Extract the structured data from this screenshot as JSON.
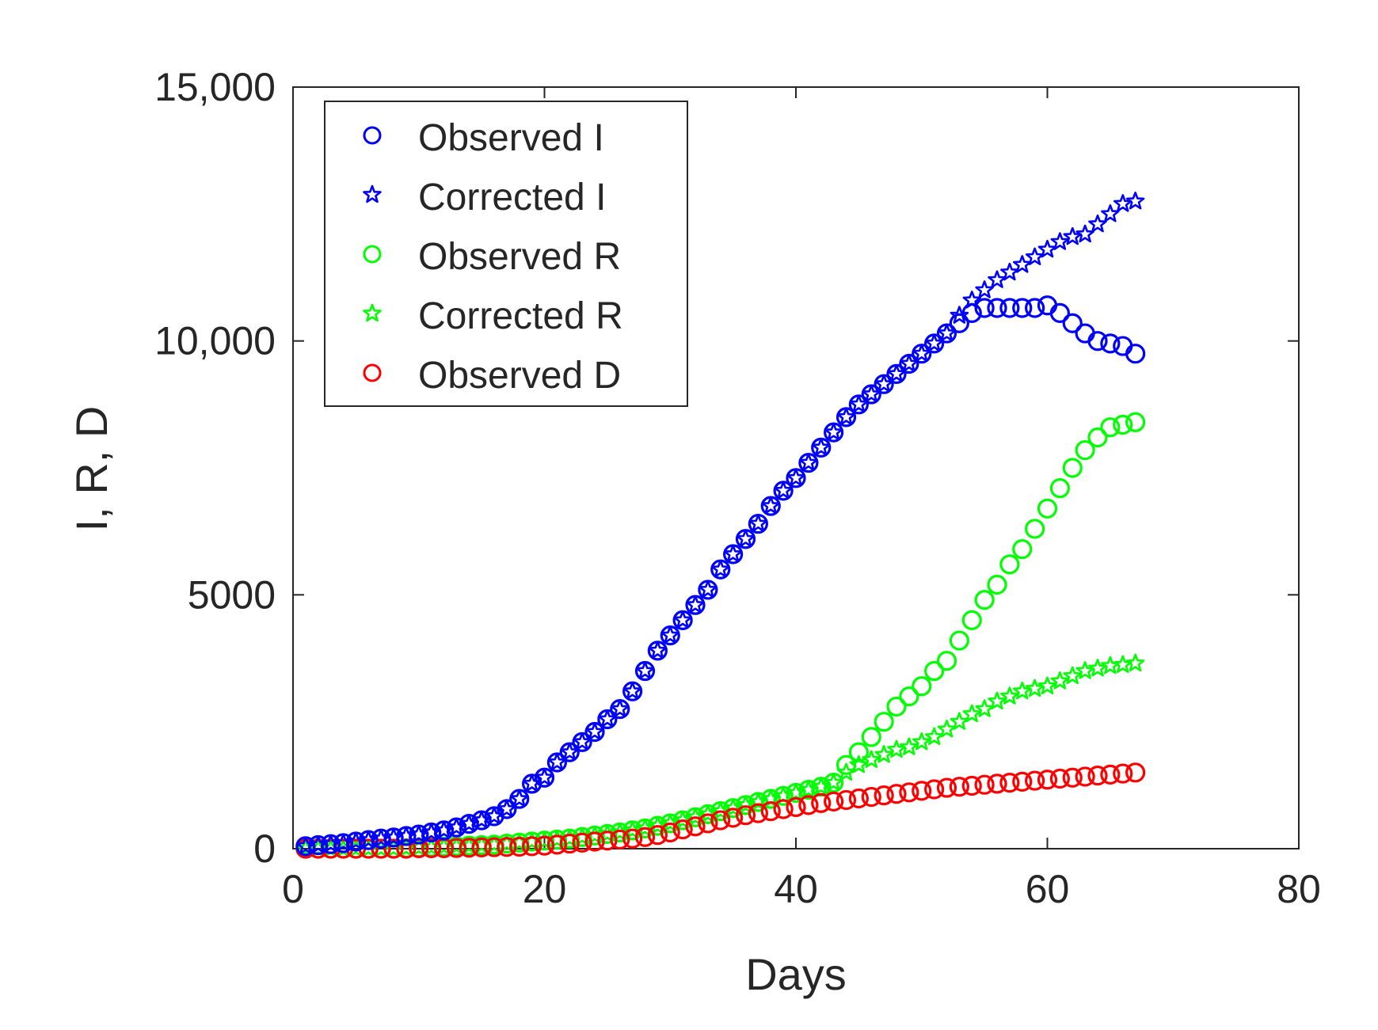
{
  "chart_data": {
    "type": "scatter",
    "title": "",
    "xlabel": "Days",
    "ylabel": "I, R, D",
    "xlim": [
      0,
      80
    ],
    "ylim": [
      0,
      15000
    ],
    "xticks": [
      0,
      20,
      40,
      60,
      80
    ],
    "yticks": [
      0,
      5000,
      10000,
      15000
    ],
    "xtick_labels": [
      "0",
      "20",
      "40",
      "60",
      "80"
    ],
    "ytick_labels": [
      "0",
      "5000",
      "10,000",
      "15,000"
    ],
    "legend_position": "top-left",
    "grid": false,
    "x": [
      1,
      2,
      3,
      4,
      5,
      6,
      7,
      8,
      9,
      10,
      11,
      12,
      13,
      14,
      15,
      16,
      17,
      18,
      19,
      20,
      21,
      22,
      23,
      24,
      25,
      26,
      27,
      28,
      29,
      30,
      31,
      32,
      33,
      34,
      35,
      36,
      37,
      38,
      39,
      40,
      41,
      42,
      43,
      44,
      45,
      46,
      47,
      48,
      49,
      50,
      51,
      52,
      53,
      54,
      55,
      56,
      57,
      58,
      59,
      60,
      61,
      62,
      63,
      64,
      65,
      66,
      67
    ],
    "series": [
      {
        "name": "Observed I",
        "marker": "circle",
        "color": "#0000ff",
        "values": [
          50,
          70,
          90,
          110,
          140,
          170,
          200,
          220,
          250,
          280,
          320,
          360,
          420,
          490,
          560,
          640,
          780,
          980,
          1280,
          1400,
          1700,
          1900,
          2100,
          2300,
          2550,
          2750,
          3100,
          3500,
          3900,
          4200,
          4500,
          4800,
          5100,
          5500,
          5800,
          6100,
          6400,
          6750,
          7050,
          7300,
          7600,
          7900,
          8200,
          8500,
          8750,
          8950,
          9150,
          9350,
          9550,
          9750,
          9950,
          10150,
          10350,
          10550,
          10650,
          10650,
          10650,
          10650,
          10650,
          10700,
          10550,
          10350,
          10150,
          10000,
          9950,
          9900,
          9750
        ]
      },
      {
        "name": "Corrected I",
        "marker": "star",
        "color": "#0000ff",
        "values": [
          50,
          70,
          90,
          110,
          140,
          170,
          200,
          220,
          250,
          280,
          320,
          360,
          420,
          490,
          560,
          640,
          780,
          980,
          1280,
          1400,
          1700,
          1900,
          2100,
          2300,
          2550,
          2750,
          3100,
          3500,
          3900,
          4200,
          4500,
          4800,
          5100,
          5500,
          5800,
          6100,
          6400,
          6750,
          7050,
          7300,
          7600,
          7900,
          8200,
          8500,
          8750,
          8950,
          9150,
          9350,
          9550,
          9750,
          9950,
          10150,
          10500,
          10800,
          11000,
          11200,
          11350,
          11500,
          11650,
          11800,
          11950,
          12050,
          12100,
          12300,
          12500,
          12700,
          12750
        ]
      },
      {
        "name": "Observed R",
        "marker": "circle",
        "color": "#00ff00",
        "values": [
          0,
          0,
          0,
          0,
          0,
          0,
          0,
          0,
          10,
          20,
          30,
          40,
          50,
          60,
          70,
          80,
          100,
          120,
          140,
          160,
          180,
          200,
          230,
          260,
          290,
          320,
          360,
          400,
          450,
          500,
          560,
          620,
          680,
          740,
          800,
          860,
          920,
          980,
          1040,
          1100,
          1160,
          1220,
          1300,
          1650,
          1900,
          2200,
          2500,
          2800,
          3000,
          3200,
          3500,
          3700,
          4100,
          4500,
          4900,
          5200,
          5600,
          5900,
          6300,
          6700,
          7100,
          7500,
          7850,
          8100,
          8300,
          8350,
          8400
        ]
      },
      {
        "name": "Corrected R",
        "marker": "star",
        "color": "#00ff00",
        "values": [
          0,
          0,
          0,
          0,
          0,
          0,
          0,
          0,
          10,
          20,
          30,
          40,
          50,
          60,
          70,
          80,
          100,
          120,
          140,
          160,
          180,
          200,
          230,
          260,
          290,
          320,
          360,
          400,
          450,
          500,
          560,
          620,
          680,
          740,
          800,
          860,
          920,
          980,
          1040,
          1100,
          1160,
          1220,
          1300,
          1500,
          1650,
          1750,
          1850,
          1950,
          2000,
          2100,
          2200,
          2350,
          2500,
          2650,
          2750,
          2900,
          3000,
          3100,
          3150,
          3200,
          3300,
          3400,
          3500,
          3550,
          3600,
          3620,
          3650
        ]
      },
      {
        "name": "Observed D",
        "marker": "circle",
        "color": "#ff0000",
        "values": [
          0,
          0,
          0,
          0,
          0,
          0,
          0,
          0,
          0,
          10,
          10,
          10,
          15,
          20,
          25,
          30,
          35,
          40,
          50,
          60,
          80,
          100,
          120,
          140,
          160,
          180,
          200,
          230,
          270,
          320,
          380,
          440,
          500,
          560,
          610,
          660,
          700,
          740,
          780,
          820,
          860,
          900,
          930,
          960,
          990,
          1020,
          1050,
          1080,
          1110,
          1140,
          1170,
          1200,
          1220,
          1240,
          1260,
          1280,
          1300,
          1320,
          1340,
          1360,
          1380,
          1400,
          1420,
          1440,
          1460,
          1480,
          1500
        ]
      }
    ]
  }
}
